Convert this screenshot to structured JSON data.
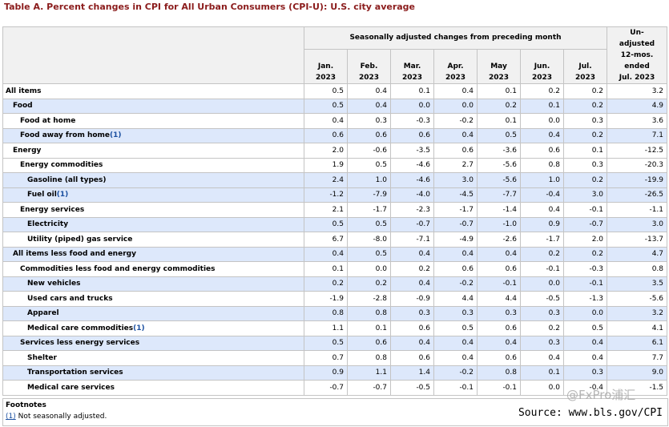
{
  "title": "Table A. Percent changes in CPI for All Urban Consumers (CPI-U): U.S. city average",
  "header": {
    "group_label": "Seasonally adjusted changes from preceding month",
    "months": [
      {
        "m": "Jan.",
        "y": "2023"
      },
      {
        "m": "Feb.",
        "y": "2023"
      },
      {
        "m": "Mar.",
        "y": "2023"
      },
      {
        "m": "Apr.",
        "y": "2023"
      },
      {
        "m": "May",
        "y": "2023"
      },
      {
        "m": "Jun.",
        "y": "2023"
      },
      {
        "m": "Jul.",
        "y": "2023"
      }
    ],
    "unadjusted_lines": [
      "Un-",
      "adjusted",
      "12-mos.",
      "ended",
      "Jul. 2023"
    ]
  },
  "rows": [
    {
      "label": "All items",
      "indent": 0,
      "fn": "",
      "values": [
        "0.5",
        "0.4",
        "0.1",
        "0.4",
        "0.1",
        "0.2",
        "0.2",
        "3.2"
      ]
    },
    {
      "label": "Food",
      "indent": 1,
      "fn": "",
      "values": [
        "0.5",
        "0.4",
        "0.0",
        "0.0",
        "0.2",
        "0.1",
        "0.2",
        "4.9"
      ]
    },
    {
      "label": "Food at home",
      "indent": 2,
      "fn": "",
      "values": [
        "0.4",
        "0.3",
        "-0.3",
        "-0.2",
        "0.1",
        "0.0",
        "0.3",
        "3.6"
      ]
    },
    {
      "label": "Food away from home",
      "indent": 2,
      "fn": "(1)",
      "values": [
        "0.6",
        "0.6",
        "0.6",
        "0.4",
        "0.5",
        "0.4",
        "0.2",
        "7.1"
      ]
    },
    {
      "label": "Energy",
      "indent": 1,
      "fn": "",
      "values": [
        "2.0",
        "-0.6",
        "-3.5",
        "0.6",
        "-3.6",
        "0.6",
        "0.1",
        "-12.5"
      ]
    },
    {
      "label": "Energy commodities",
      "indent": 2,
      "fn": "",
      "values": [
        "1.9",
        "0.5",
        "-4.6",
        "2.7",
        "-5.6",
        "0.8",
        "0.3",
        "-20.3"
      ]
    },
    {
      "label": "Gasoline (all types)",
      "indent": 3,
      "fn": "",
      "values": [
        "2.4",
        "1.0",
        "-4.6",
        "3.0",
        "-5.6",
        "1.0",
        "0.2",
        "-19.9"
      ]
    },
    {
      "label": "Fuel oil",
      "indent": 3,
      "fn": "(1)",
      "values": [
        "-1.2",
        "-7.9",
        "-4.0",
        "-4.5",
        "-7.7",
        "-0.4",
        "3.0",
        "-26.5"
      ]
    },
    {
      "label": "Energy services",
      "indent": 2,
      "fn": "",
      "values": [
        "2.1",
        "-1.7",
        "-2.3",
        "-1.7",
        "-1.4",
        "0.4",
        "-0.1",
        "-1.1"
      ]
    },
    {
      "label": "Electricity",
      "indent": 3,
      "fn": "",
      "values": [
        "0.5",
        "0.5",
        "-0.7",
        "-0.7",
        "-1.0",
        "0.9",
        "-0.7",
        "3.0"
      ]
    },
    {
      "label": "Utility (piped) gas service",
      "indent": 3,
      "fn": "",
      "values": [
        "6.7",
        "-8.0",
        "-7.1",
        "-4.9",
        "-2.6",
        "-1.7",
        "2.0",
        "-13.7"
      ]
    },
    {
      "label": "All items less food and energy",
      "indent": 1,
      "fn": "",
      "values": [
        "0.4",
        "0.5",
        "0.4",
        "0.4",
        "0.4",
        "0.2",
        "0.2",
        "4.7"
      ]
    },
    {
      "label": "Commodities less food and energy commodities",
      "indent": 2,
      "fn": "",
      "values": [
        "0.1",
        "0.0",
        "0.2",
        "0.6",
        "0.6",
        "-0.1",
        "-0.3",
        "0.8"
      ]
    },
    {
      "label": "New vehicles",
      "indent": 3,
      "fn": "",
      "values": [
        "0.2",
        "0.2",
        "0.4",
        "-0.2",
        "-0.1",
        "0.0",
        "-0.1",
        "3.5"
      ]
    },
    {
      "label": "Used cars and trucks",
      "indent": 3,
      "fn": "",
      "values": [
        "-1.9",
        "-2.8",
        "-0.9",
        "4.4",
        "4.4",
        "-0.5",
        "-1.3",
        "-5.6"
      ]
    },
    {
      "label": "Apparel",
      "indent": 3,
      "fn": "",
      "values": [
        "0.8",
        "0.8",
        "0.3",
        "0.3",
        "0.3",
        "0.3",
        "0.0",
        "3.2"
      ]
    },
    {
      "label": "Medical care commodities",
      "indent": 3,
      "fn": "(1)",
      "values": [
        "1.1",
        "0.1",
        "0.6",
        "0.5",
        "0.6",
        "0.2",
        "0.5",
        "4.1"
      ]
    },
    {
      "label": "Services less energy services",
      "indent": 2,
      "fn": "",
      "values": [
        "0.5",
        "0.6",
        "0.4",
        "0.4",
        "0.4",
        "0.3",
        "0.4",
        "6.1"
      ]
    },
    {
      "label": "Shelter",
      "indent": 3,
      "fn": "",
      "values": [
        "0.7",
        "0.8",
        "0.6",
        "0.4",
        "0.6",
        "0.4",
        "0.4",
        "7.7"
      ]
    },
    {
      "label": "Transportation services",
      "indent": 3,
      "fn": "",
      "values": [
        "0.9",
        "1.1",
        "1.4",
        "-0.2",
        "0.8",
        "0.1",
        "0.3",
        "9.0"
      ]
    },
    {
      "label": "Medical care services",
      "indent": 3,
      "fn": "",
      "values": [
        "-0.7",
        "-0.7",
        "-0.5",
        "-0.1",
        "-0.1",
        "0.0",
        "-0.4",
        "-1.5"
      ]
    }
  ],
  "footnotes": {
    "heading": "Footnotes",
    "items": [
      {
        "marker": "(1)",
        "text": " Not seasonally adjusted."
      }
    ]
  },
  "source": "Source: www.bls.gov/CPI",
  "watermark": "@FxPro浦汇"
}
